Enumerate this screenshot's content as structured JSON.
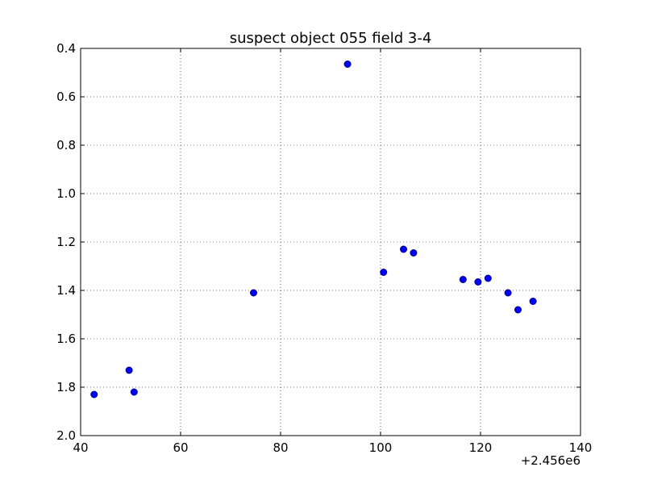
{
  "chart_data": {
    "type": "scatter",
    "title": "suspect object 055 field 3-4",
    "xlabel": "",
    "ylabel": "",
    "x_offset_label": "+2.456e6",
    "xlim": [
      40,
      140
    ],
    "ylim": [
      0.4,
      2.0
    ],
    "y_inverted": true,
    "grid": true,
    "x_ticks": [
      "40",
      "60",
      "80",
      "100",
      "120",
      "140"
    ],
    "y_ticks": [
      "0.4",
      "0.6",
      "0.8",
      "1.0",
      "1.2",
      "1.4",
      "1.6",
      "1.8",
      "2.0"
    ],
    "marker_color": "#0000ff",
    "marker_edge_color": "#000080",
    "series": [
      {
        "points": [
          {
            "x": 42.7,
            "y": 1.83
          },
          {
            "x": 49.7,
            "y": 1.73
          },
          {
            "x": 50.7,
            "y": 1.82
          },
          {
            "x": 74.6,
            "y": 1.41
          },
          {
            "x": 93.4,
            "y": 0.465
          },
          {
            "x": 100.6,
            "y": 1.325
          },
          {
            "x": 104.6,
            "y": 1.23
          },
          {
            "x": 106.6,
            "y": 1.245
          },
          {
            "x": 116.5,
            "y": 1.355
          },
          {
            "x": 119.5,
            "y": 1.365
          },
          {
            "x": 121.5,
            "y": 1.35
          },
          {
            "x": 125.5,
            "y": 1.41
          },
          {
            "x": 127.5,
            "y": 1.48
          },
          {
            "x": 130.5,
            "y": 1.445
          }
        ]
      }
    ]
  }
}
